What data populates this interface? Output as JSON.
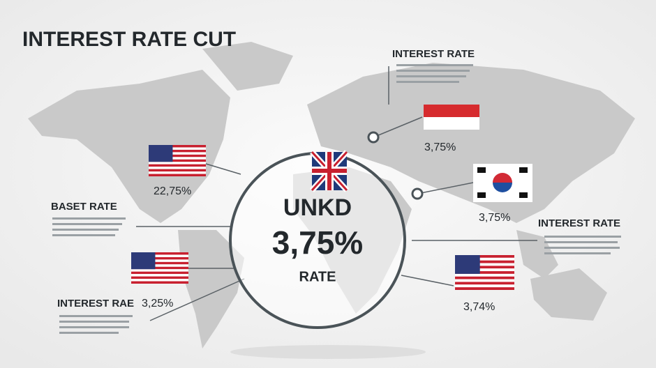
{
  "header": {
    "title": "INTEREST RATE CUT"
  },
  "center": {
    "label": "UNKD",
    "value": "3,75%",
    "caption": "RATE"
  },
  "top_right": {
    "title": "INTEREST RATE",
    "value": "3,75%"
  },
  "korea": {
    "value": "3,75%"
  },
  "right": {
    "title": "INTEREST RATE"
  },
  "bottom_right": {
    "value": "3,74%"
  },
  "top_left": {
    "value": "22,75%"
  },
  "left": {
    "title": "BASET RATE"
  },
  "bottom_left": {
    "title": "INTEREST RAE",
    "value": "3,25%"
  }
}
